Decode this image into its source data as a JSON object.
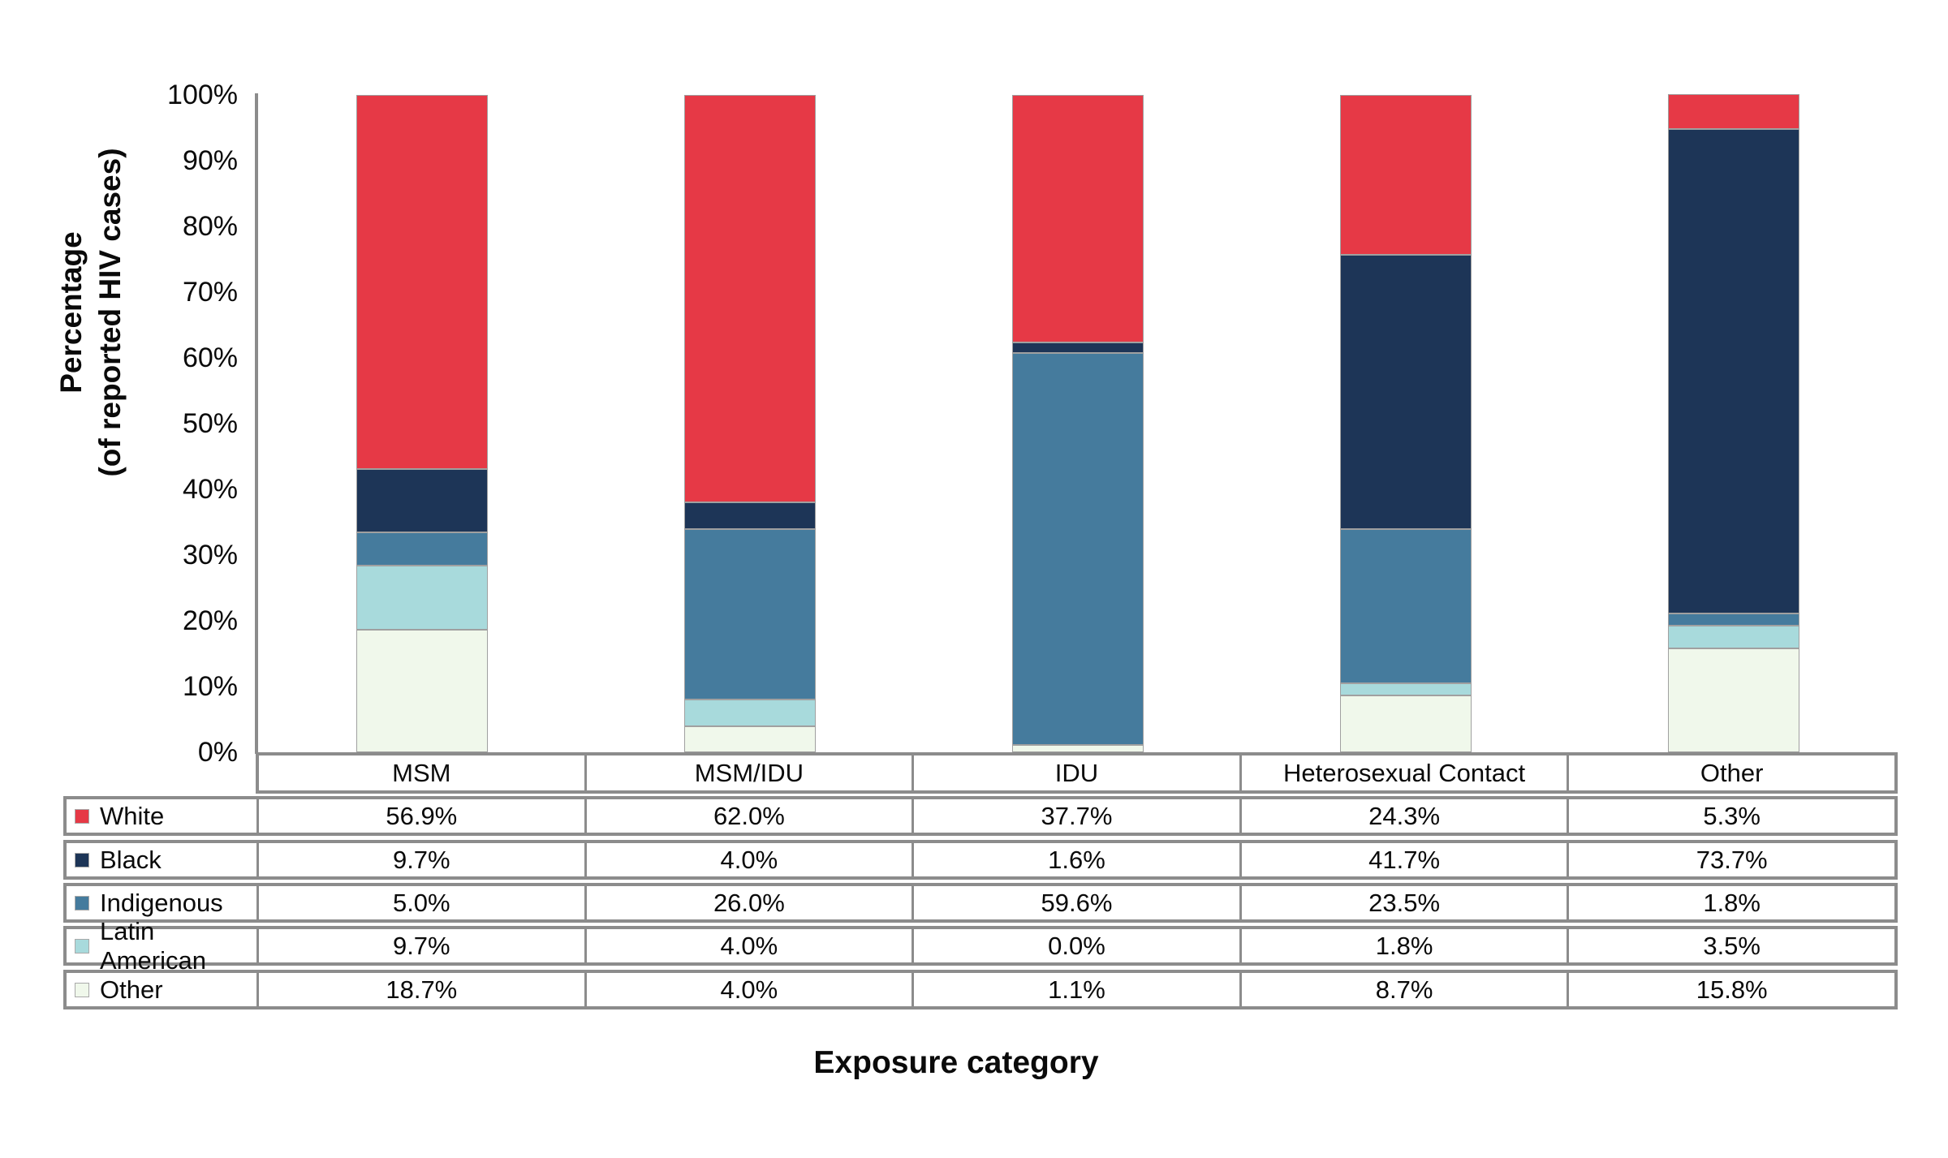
{
  "figure": {
    "y_axis": {
      "title_line1": "Percentage",
      "title_line2": "(of reported HIV cases)",
      "tick_labels": [
        "0%",
        "10%",
        "20%",
        "30%",
        "40%",
        "50%",
        "60%",
        "70%",
        "80%",
        "90%",
        "100%"
      ]
    },
    "x_axis": {
      "title": "Exposure category"
    },
    "style": {
      "axis_color": "#8C8C8C",
      "table_border_color": "#8C8C8C",
      "segment_outline_color": "#A0A0A0",
      "background": "#FFFFFF"
    }
  },
  "chart_data": {
    "type": "bar",
    "stacked": true,
    "title": "",
    "xlabel": "Exposure category",
    "ylabel": "Percentage (of reported HIV cases)",
    "ylim": [
      0,
      100
    ],
    "ytick_step": 10,
    "grid": false,
    "legend_position": "table-left-column",
    "value_format": "percent_one_decimal",
    "categories": [
      "MSM",
      "MSM/IDU",
      "IDU",
      "Heterosexual Contact",
      "Other"
    ],
    "series": [
      {
        "name": "White",
        "color": "#E63946",
        "values": [
          56.9,
          62.0,
          37.7,
          24.3,
          5.3
        ]
      },
      {
        "name": "Black",
        "color": "#1D3557",
        "values": [
          9.7,
          4.0,
          1.6,
          41.7,
          73.7
        ]
      },
      {
        "name": "Indigenous",
        "color": "#457B9D",
        "values": [
          5.0,
          26.0,
          59.6,
          23.5,
          1.8
        ]
      },
      {
        "name": "Latin American",
        "color": "#A8DADC",
        "values": [
          9.7,
          4.0,
          0.0,
          1.8,
          3.5
        ]
      },
      {
        "name": "Other",
        "color": "#F0F8EB",
        "values": [
          18.7,
          4.0,
          1.1,
          8.7,
          15.8
        ]
      }
    ],
    "stack_order_bottom_to_top": [
      "Other",
      "Latin American",
      "Indigenous",
      "Black",
      "White"
    ]
  },
  "table": {
    "value_labels": [
      [
        "56.9%",
        "62.0%",
        "37.7%",
        "24.3%",
        "5.3%"
      ],
      [
        "9.7%",
        "4.0%",
        "1.6%",
        "41.7%",
        "73.7%"
      ],
      [
        "5.0%",
        "26.0%",
        "59.6%",
        "23.5%",
        "1.8%"
      ],
      [
        "9.7%",
        "4.0%",
        "0.0%",
        "1.8%",
        "3.5%"
      ],
      [
        "18.7%",
        "4.0%",
        "1.1%",
        "8.7%",
        "15.8%"
      ]
    ]
  }
}
